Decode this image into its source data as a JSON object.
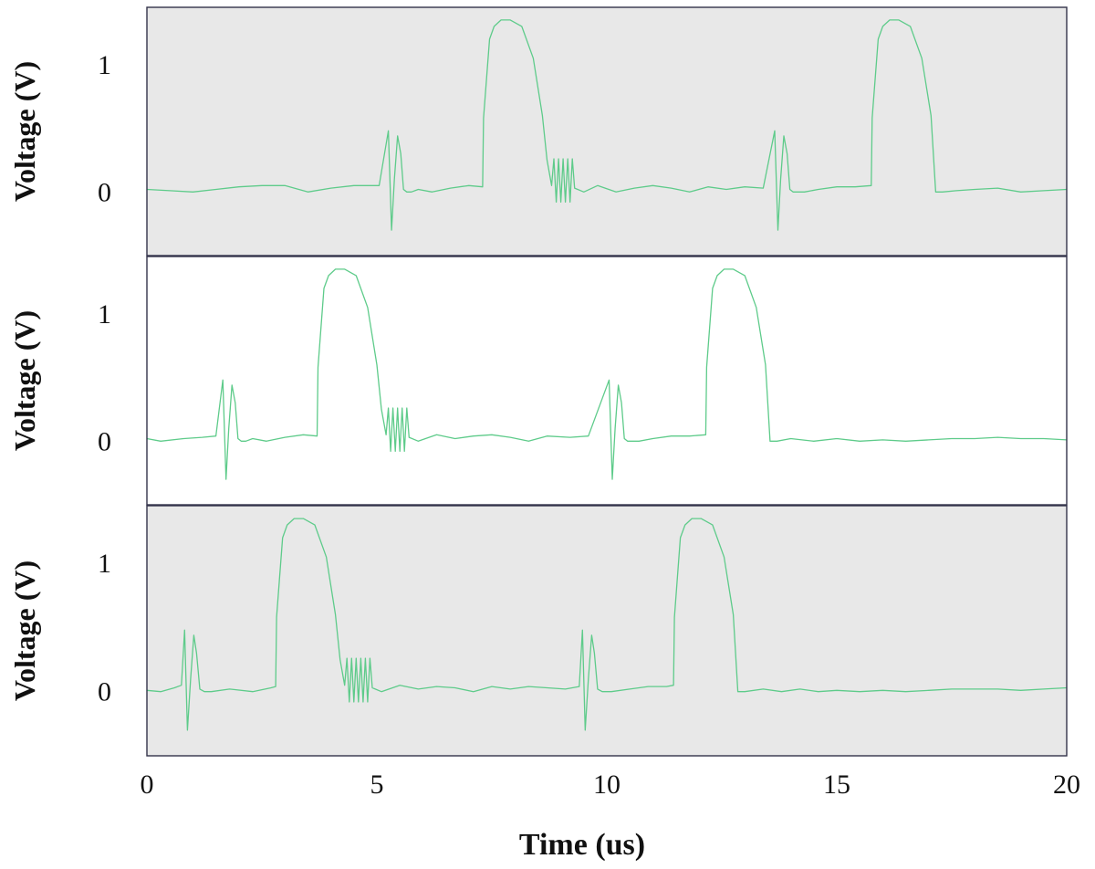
{
  "chart_data": [
    {
      "type": "line",
      "ylabel": "Voltage (V)",
      "yticks": [
        {
          "value": 0,
          "label": "0"
        },
        {
          "value": 1,
          "label": "1"
        }
      ],
      "ylim": [
        -0.5,
        1.45
      ],
      "background": "#e8e8e8",
      "series": [
        {
          "color": "#5ecb8a",
          "x": [
            0,
            0.5,
            1,
            1.5,
            2,
            2.5,
            3,
            3.5,
            4,
            4.5,
            5.05,
            5.25,
            5.32,
            5.38,
            5.45,
            5.52,
            5.58,
            5.65,
            5.75,
            5.9,
            6.2,
            6.6,
            7.0,
            7.3,
            7.32,
            7.45,
            7.55,
            7.7,
            7.9,
            8.15,
            8.4,
            8.6,
            8.7,
            8.8,
            8.85,
            8.9,
            8.95,
            9.0,
            9.05,
            9.1,
            9.15,
            9.2,
            9.25,
            9.3,
            9.5,
            9.8,
            10.2,
            10.6,
            11.0,
            11.4,
            11.8,
            12.2,
            12.6,
            13.0,
            13.4,
            13.65,
            13.72,
            13.78,
            13.85,
            13.92,
            13.98,
            14.05,
            14.15,
            14.3,
            14.6,
            15.0,
            15.4,
            15.75,
            15.77,
            15.9,
            16.0,
            16.15,
            16.35,
            16.6,
            16.85,
            17.05,
            17.15,
            17.3,
            17.6,
            18.0,
            18.5,
            19.0,
            19.5,
            20
          ],
          "y": [
            0.02,
            0.01,
            0.0,
            0.02,
            0.04,
            0.05,
            0.05,
            0.0,
            0.03,
            0.05,
            0.05,
            0.48,
            -0.3,
            0.1,
            0.44,
            0.3,
            0.02,
            0.0,
            0.0,
            0.02,
            0.0,
            0.03,
            0.05,
            0.04,
            0.58,
            1.2,
            1.3,
            1.35,
            1.35,
            1.3,
            1.05,
            0.6,
            0.25,
            0.05,
            0.26,
            -0.08,
            0.26,
            -0.08,
            0.26,
            -0.08,
            0.26,
            -0.08,
            0.26,
            0.03,
            0.0,
            0.05,
            0.0,
            0.03,
            0.05,
            0.03,
            0.0,
            0.04,
            0.02,
            0.04,
            0.03,
            0.48,
            -0.3,
            0.1,
            0.44,
            0.3,
            0.02,
            0.0,
            0.0,
            0.0,
            0.02,
            0.04,
            0.04,
            0.05,
            0.58,
            1.2,
            1.3,
            1.35,
            1.35,
            1.3,
            1.05,
            0.6,
            0.0,
            0.0,
            0.01,
            0.02,
            0.03,
            0.0,
            0.01,
            0.02
          ]
        }
      ]
    },
    {
      "type": "line",
      "ylabel": "Voltage (V)",
      "yticks": [
        {
          "value": 0,
          "label": "0"
        },
        {
          "value": 1,
          "label": "1"
        }
      ],
      "ylim": [
        -0.5,
        1.45
      ],
      "background": "#ffffff",
      "series": [
        {
          "color": "#5ecb8a",
          "x": [
            0,
            0.3,
            0.8,
            1.2,
            1.5,
            1.65,
            1.72,
            1.78,
            1.85,
            1.92,
            1.98,
            2.05,
            2.15,
            2.3,
            2.6,
            3.0,
            3.4,
            3.7,
            3.72,
            3.85,
            3.95,
            4.1,
            4.3,
            4.55,
            4.8,
            5.0,
            5.1,
            5.2,
            5.25,
            5.3,
            5.35,
            5.4,
            5.45,
            5.5,
            5.55,
            5.6,
            5.65,
            5.7,
            5.9,
            6.3,
            6.7,
            7.1,
            7.5,
            7.9,
            8.3,
            8.7,
            9.2,
            9.6,
            10.05,
            10.12,
            10.18,
            10.25,
            10.32,
            10.38,
            10.45,
            10.55,
            10.7,
            11.0,
            11.4,
            11.8,
            12.15,
            12.17,
            12.3,
            12.4,
            12.55,
            12.75,
            13.0,
            13.25,
            13.45,
            13.55,
            13.7,
            14.0,
            14.5,
            15.0,
            15.5,
            16.0,
            16.5,
            17.0,
            17.5,
            18.0,
            18.5,
            19.0,
            19.5,
            20
          ],
          "y": [
            0.02,
            0.0,
            0.02,
            0.03,
            0.04,
            0.48,
            -0.3,
            0.1,
            0.44,
            0.3,
            0.02,
            0.0,
            0.0,
            0.02,
            0.0,
            0.03,
            0.05,
            0.04,
            0.58,
            1.2,
            1.3,
            1.35,
            1.35,
            1.3,
            1.05,
            0.6,
            0.25,
            0.05,
            0.26,
            -0.08,
            0.26,
            -0.08,
            0.26,
            -0.08,
            0.26,
            -0.08,
            0.26,
            0.03,
            0.0,
            0.05,
            0.02,
            0.04,
            0.05,
            0.03,
            0.0,
            0.04,
            0.03,
            0.04,
            0.48,
            -0.3,
            0.1,
            0.44,
            0.3,
            0.02,
            0.0,
            0.0,
            0.0,
            0.02,
            0.04,
            0.04,
            0.05,
            0.58,
            1.2,
            1.3,
            1.35,
            1.35,
            1.3,
            1.05,
            0.6,
            0.0,
            0.0,
            0.02,
            0.0,
            0.02,
            0.0,
            0.01,
            0.0,
            0.01,
            0.02,
            0.02,
            0.03,
            0.02,
            0.02,
            0.01
          ]
        }
      ]
    },
    {
      "type": "line",
      "ylabel": "Voltage (V)",
      "yticks": [
        {
          "value": 0,
          "label": "0"
        },
        {
          "value": 1,
          "label": "1"
        }
      ],
      "ylim": [
        -0.5,
        1.45
      ],
      "background": "#e8e8e8",
      "series": [
        {
          "color": "#5ecb8a",
          "x": [
            0,
            0.3,
            0.6,
            0.75,
            0.82,
            0.88,
            0.95,
            1.02,
            1.08,
            1.15,
            1.25,
            1.4,
            1.8,
            2.3,
            2.7,
            2.8,
            2.82,
            2.95,
            3.05,
            3.2,
            3.4,
            3.65,
            3.9,
            4.1,
            4.2,
            4.3,
            4.35,
            4.4,
            4.45,
            4.5,
            4.55,
            4.6,
            4.65,
            4.7,
            4.75,
            4.8,
            4.85,
            4.9,
            5.1,
            5.5,
            5.9,
            6.3,
            6.7,
            7.1,
            7.5,
            7.9,
            8.3,
            8.7,
            9.1,
            9.4,
            9.47,
            9.53,
            9.6,
            9.67,
            9.73,
            9.8,
            9.9,
            10.1,
            10.5,
            10.9,
            11.3,
            11.45,
            11.47,
            11.6,
            11.7,
            11.85,
            12.05,
            12.3,
            12.55,
            12.75,
            12.85,
            13.0,
            13.4,
            13.8,
            14.2,
            14.6,
            15.0,
            15.5,
            16.0,
            16.5,
            17.0,
            17.5,
            18.0,
            18.5,
            19.0,
            19.5,
            20
          ],
          "y": [
            0.01,
            0.0,
            0.03,
            0.05,
            0.48,
            -0.3,
            0.1,
            0.44,
            0.3,
            0.02,
            0.0,
            0.0,
            0.02,
            0.0,
            0.03,
            0.04,
            0.58,
            1.2,
            1.3,
            1.35,
            1.35,
            1.3,
            1.05,
            0.6,
            0.25,
            0.05,
            0.26,
            -0.08,
            0.26,
            -0.08,
            0.26,
            -0.08,
            0.26,
            -0.08,
            0.26,
            -0.08,
            0.26,
            0.03,
            0.0,
            0.05,
            0.02,
            0.04,
            0.03,
            0.0,
            0.04,
            0.02,
            0.04,
            0.03,
            0.02,
            0.04,
            0.48,
            -0.3,
            0.1,
            0.44,
            0.3,
            0.02,
            0.0,
            0.0,
            0.02,
            0.04,
            0.04,
            0.05,
            0.58,
            1.2,
            1.3,
            1.35,
            1.35,
            1.3,
            1.05,
            0.6,
            0.0,
            0.0,
            0.02,
            0.0,
            0.02,
            0.0,
            0.01,
            0.0,
            0.01,
            0.0,
            0.01,
            0.02,
            0.02,
            0.02,
            0.01,
            0.02,
            0.03
          ]
        }
      ]
    }
  ],
  "shared_x_axis": {
    "label": "Time (us)",
    "xlim": [
      0,
      20
    ],
    "ticks": [
      {
        "value": 0,
        "label": "0"
      },
      {
        "value": 5,
        "label": "5"
      },
      {
        "value": 10,
        "label": "10"
      },
      {
        "value": 15,
        "label": "15"
      },
      {
        "value": 20,
        "label": "20"
      }
    ]
  }
}
